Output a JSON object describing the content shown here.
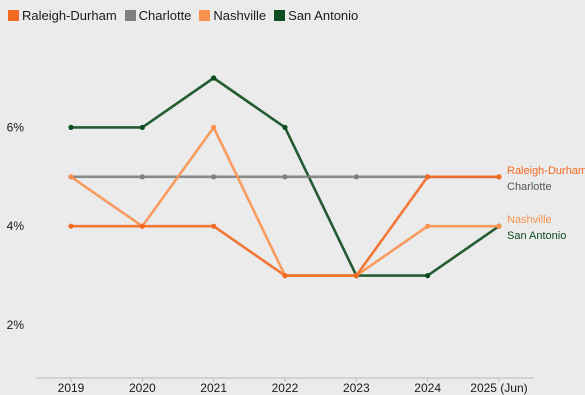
{
  "chart_data": {
    "type": "line",
    "categories": [
      "2019",
      "2020",
      "2021",
      "2022",
      "2023",
      "2024",
      "2025 (Jun)"
    ],
    "y_ticks": [
      2,
      4,
      6
    ],
    "y_tick_labels": [
      "2%",
      "4%",
      "6%"
    ],
    "ylim": [
      1,
      7.5
    ],
    "grid": false,
    "legend_position": "top-left",
    "end_labels": true,
    "series": [
      {
        "name": "Raleigh-Durham",
        "color": "#f26a22",
        "values": [
          4,
          4,
          4,
          3,
          3,
          5,
          5
        ]
      },
      {
        "name": "Charlotte",
        "color": "#7f7f7f",
        "values": [
          5,
          5,
          5,
          5,
          5,
          5,
          5
        ]
      },
      {
        "name": "Nashville",
        "color": "#f9924f",
        "values": [
          5,
          4,
          6,
          3,
          3,
          4,
          4
        ]
      },
      {
        "name": "San Antonio",
        "color": "#0d4d1f",
        "values": [
          6,
          6,
          7,
          6,
          3,
          3,
          4
        ]
      }
    ]
  }
}
